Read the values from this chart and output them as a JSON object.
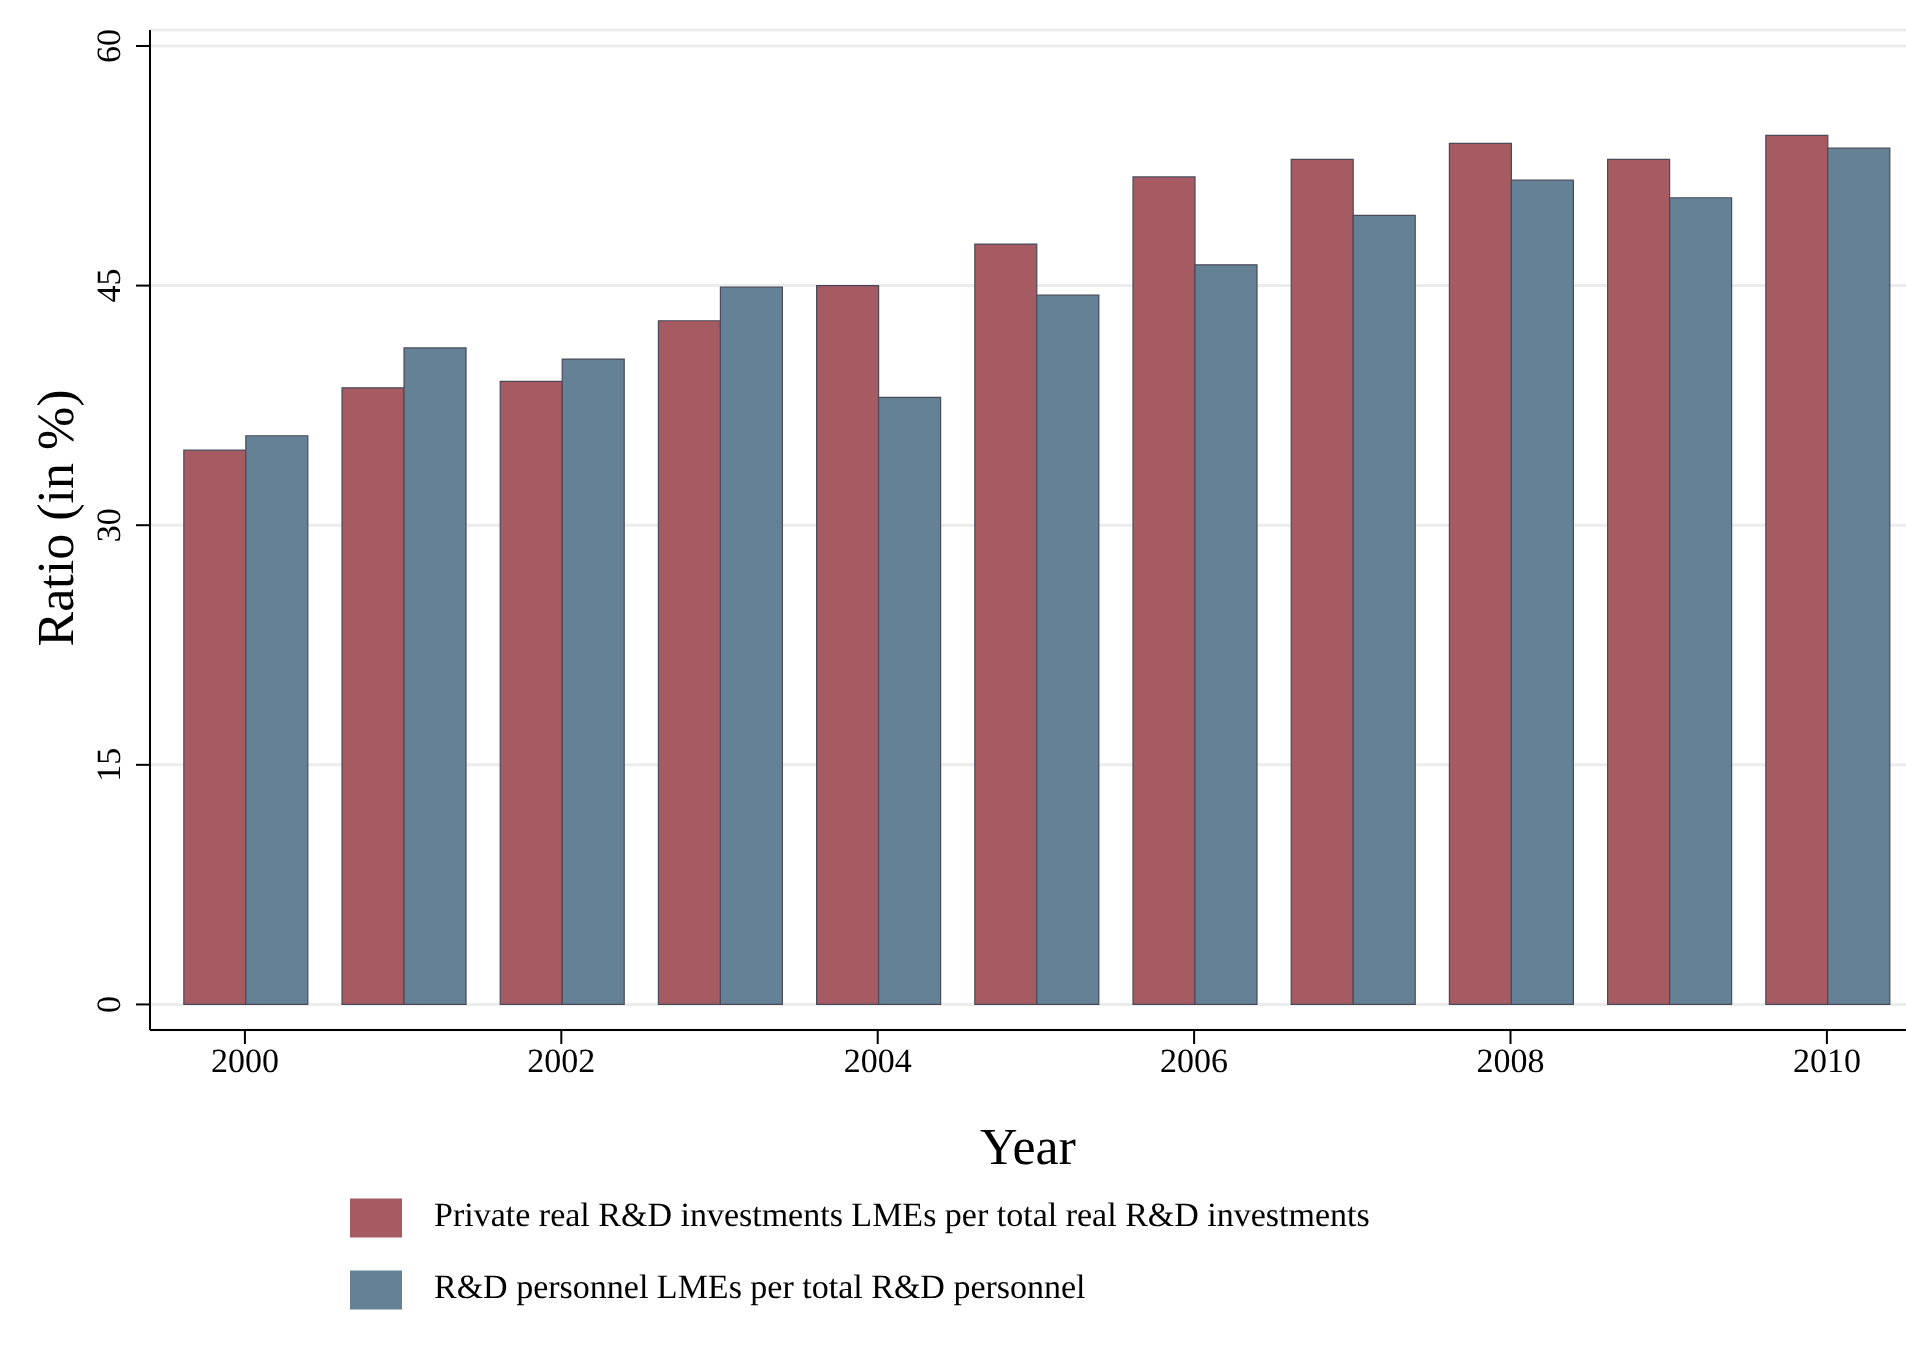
{
  "chart_data": {
    "type": "bar",
    "xlabel": "Year",
    "ylabel": "Ratio (in %)",
    "x": [
      2000,
      2001,
      2002,
      2003,
      2004,
      2005,
      2006,
      2007,
      2008,
      2009,
      2010
    ],
    "xlim": [
      1999.4,
      2010.5
    ],
    "xticks": [
      2000,
      2002,
      2004,
      2006,
      2008,
      2010
    ],
    "ylim": [
      -1.6,
      61
    ],
    "yticks": [
      0,
      15,
      30,
      45,
      60
    ],
    "grid": "y",
    "legend": "bottom",
    "series": [
      {
        "name": "Private real R&D investments LMEs per total real R&D investments",
        "color": "#a55b61",
        "values": [
          34.7,
          38.6,
          39.0,
          42.8,
          45.0,
          47.6,
          51.8,
          52.9,
          53.9,
          52.9,
          54.4
        ]
      },
      {
        "name": "R&D personnel LMEs per total R&D personnel",
        "color": "#648196",
        "values": [
          35.6,
          41.1,
          40.4,
          44.9,
          38.0,
          44.4,
          46.3,
          49.4,
          51.6,
          50.5,
          53.6
        ]
      }
    ]
  }
}
